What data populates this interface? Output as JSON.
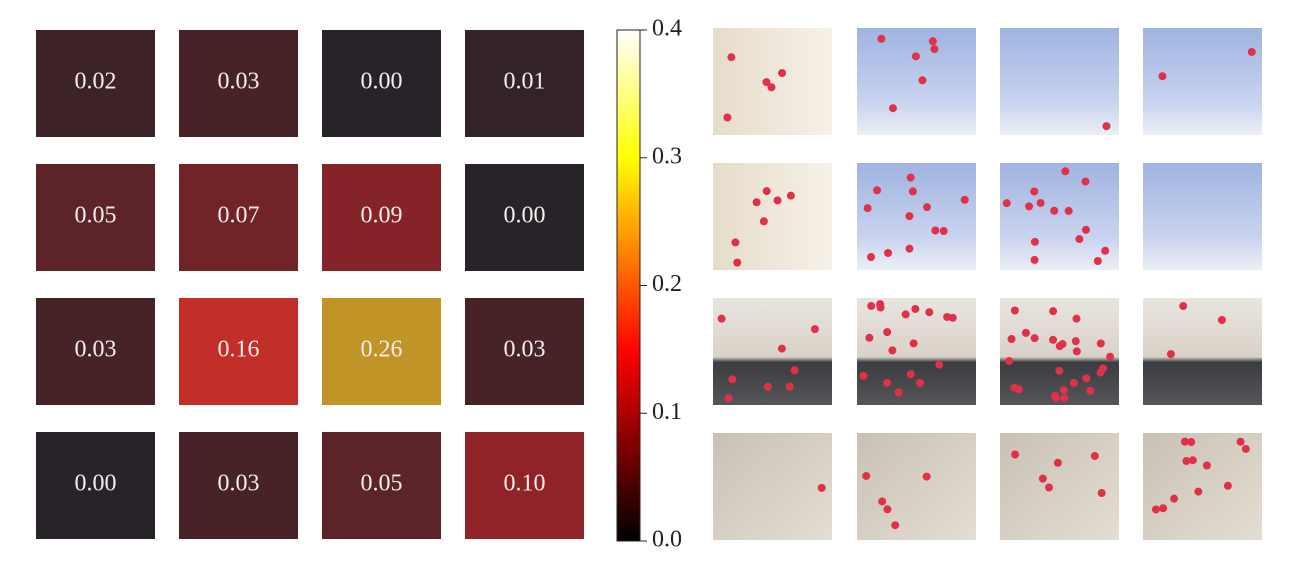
{
  "chart_data": {
    "type": "heatmap",
    "values": [
      [
        0.02,
        0.03,
        0.0,
        0.01
      ],
      [
        0.05,
        0.07,
        0.09,
        0.0
      ],
      [
        0.03,
        0.16,
        0.26,
        0.03
      ],
      [
        0.0,
        0.03,
        0.05,
        0.1
      ]
    ],
    "value_labels": [
      [
        "0.02",
        "0.03",
        "0.00",
        "0.01"
      ],
      [
        "0.05",
        "0.07",
        "0.09",
        "0.00"
      ],
      [
        "0.03",
        "0.16",
        "0.26",
        "0.03"
      ],
      [
        "0.00",
        "0.03",
        "0.05",
        "0.10"
      ]
    ],
    "colormap": "hot",
    "zlim": [
      0,
      0.4
    ],
    "zticks": [
      {
        "value": 0,
        "label": "0.0"
      },
      {
        "value": 0.1,
        "label": "0.1"
      },
      {
        "value": 0.2,
        "label": "0.2"
      },
      {
        "value": 0.3,
        "label": "0.3"
      },
      {
        "value": 0.4,
        "label": "0.4"
      }
    ]
  }
}
